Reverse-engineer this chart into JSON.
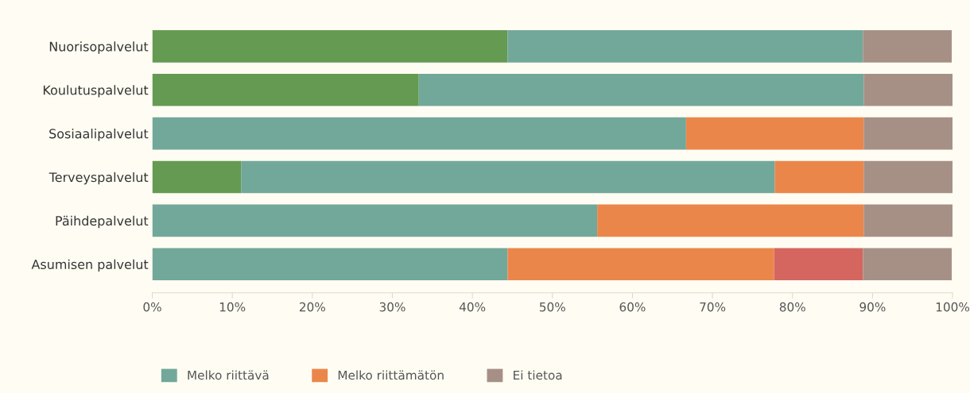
{
  "chart_data": {
    "type": "bar",
    "orientation": "horizontal",
    "stacked": true,
    "categories": [
      "Nuorisopalvelut",
      "Koulutuspalvelut",
      "Sosiaalipalvelut",
      "Terveyspalvelut",
      "Päihdepalvelut",
      "Asumisen palvelut"
    ],
    "series": [
      {
        "color": "#659a52",
        "values": [
          44.4,
          33.3,
          0,
          11.1,
          0,
          0
        ]
      },
      {
        "name": "Melko riittävä",
        "color": "#71a89a",
        "values": [
          44.4,
          55.6,
          66.7,
          66.7,
          55.6,
          44.4
        ]
      },
      {
        "name": "Melko riittämätön",
        "color": "#eb864b",
        "values": [
          0,
          0,
          22.2,
          11.1,
          33.3,
          33.3
        ]
      },
      {
        "color": "#d4665f",
        "values": [
          0,
          0,
          0,
          0,
          0,
          11.1
        ]
      },
      {
        "name": "Ei tietoa",
        "color": "#a69086",
        "values": [
          11.1,
          11.1,
          11.1,
          11.1,
          11.1,
          11.1
        ]
      }
    ],
    "xlim": [
      0,
      100
    ],
    "xticks": [
      {
        "value": 0,
        "label": "0%"
      },
      {
        "value": 10,
        "label": "10%"
      },
      {
        "value": 20,
        "label": "20%"
      },
      {
        "value": 30,
        "label": "30%"
      },
      {
        "value": 40,
        "label": "40%"
      },
      {
        "value": 50,
        "label": "50%"
      },
      {
        "value": 60,
        "label": "60%"
      },
      {
        "value": 70,
        "label": "70%"
      },
      {
        "value": 80,
        "label": "80%"
      },
      {
        "value": 90,
        "label": "90%"
      },
      {
        "value": 100,
        "label": "100%"
      }
    ],
    "legend": "bottom left",
    "grid": false
  }
}
